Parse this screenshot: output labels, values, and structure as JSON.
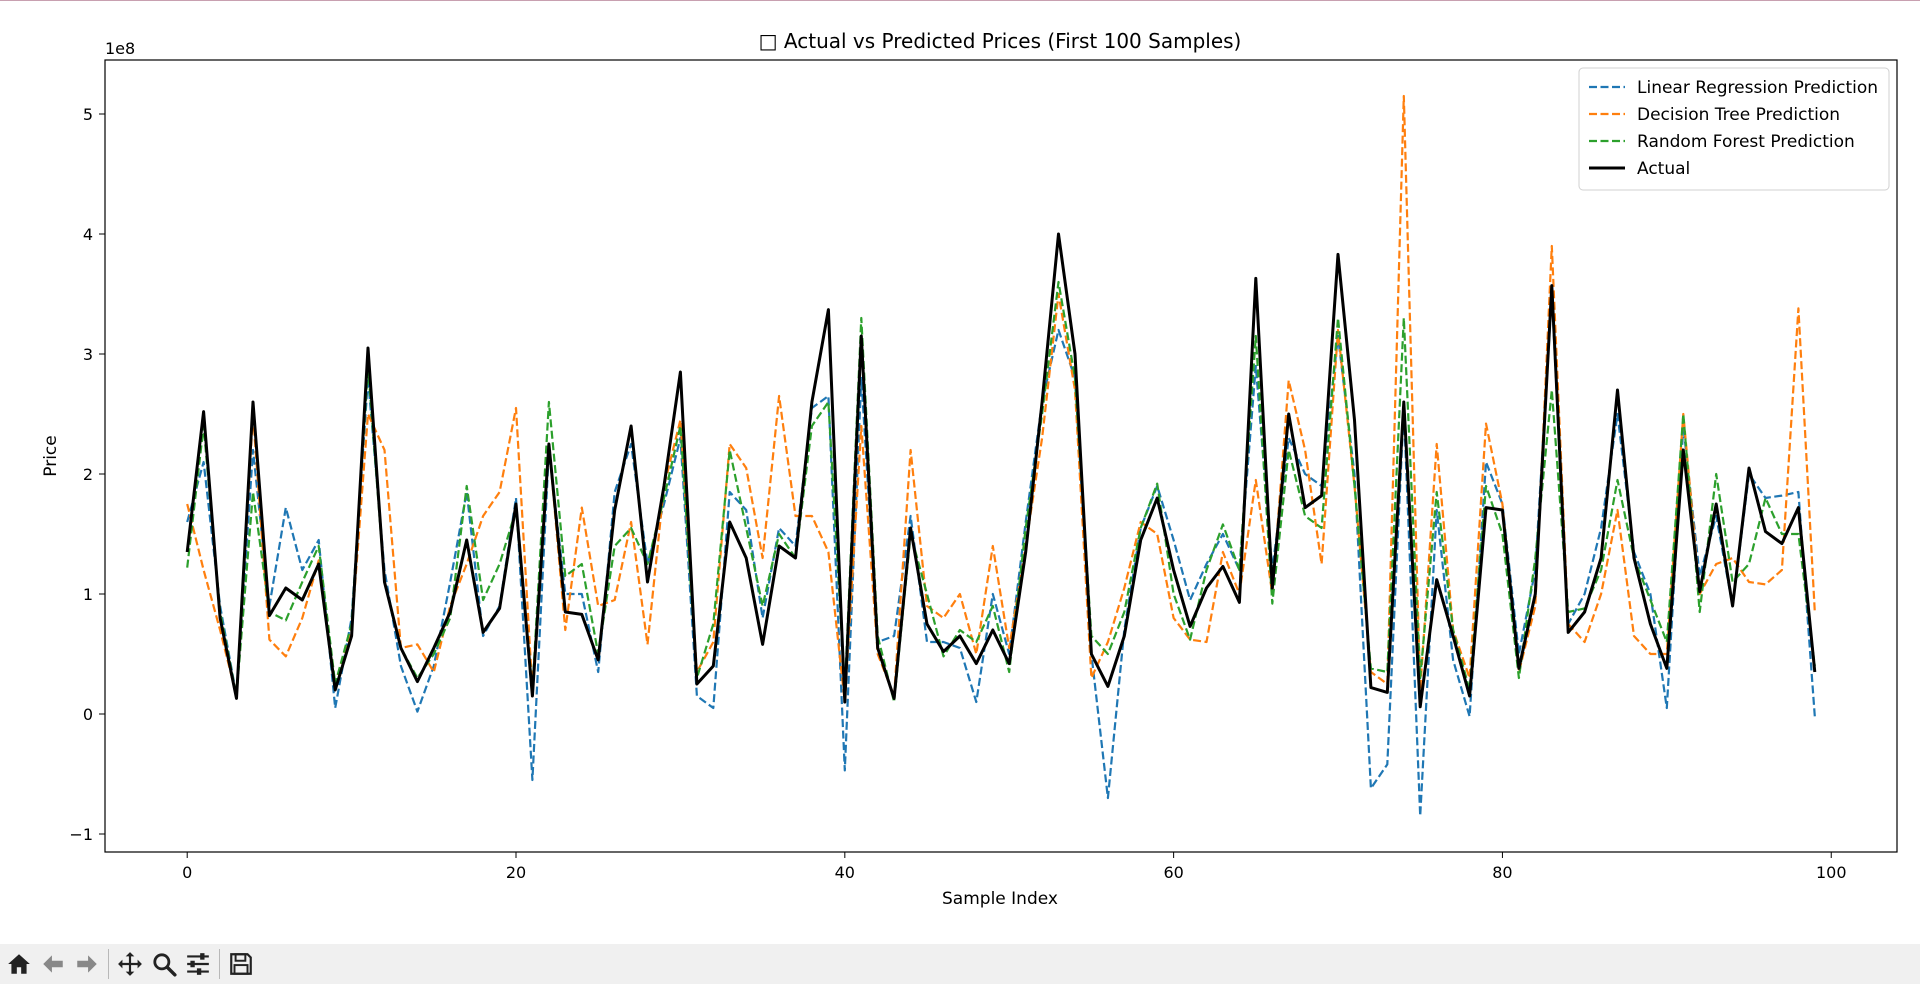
{
  "window": {
    "toolbar": {
      "buttons": [
        {
          "icon": "home-icon"
        },
        {
          "icon": "back-arrow-icon"
        },
        {
          "icon": "forward-arrow-icon"
        },
        {
          "icon": "pan-move-icon"
        },
        {
          "icon": "zoom-magnifier-icon"
        },
        {
          "icon": "configure-subplots-icon"
        },
        {
          "icon": "save-floppy-icon"
        }
      ]
    }
  },
  "chart_data": {
    "type": "line",
    "title": "□ Actual vs Predicted Prices (First 100 Samples)",
    "xlabel": "Sample Index",
    "ylabel": "Price",
    "offset_text": "1e8",
    "xlim": [
      -5,
      104
    ],
    "ylim": [
      -1.15,
      5.45
    ],
    "xticks": [
      0,
      20,
      40,
      60,
      80,
      100
    ],
    "yticks": [
      -1,
      0,
      1,
      2,
      3,
      4,
      5
    ],
    "grid": false,
    "legend_position": "upper right",
    "x": [
      0,
      1,
      2,
      3,
      4,
      5,
      6,
      7,
      8,
      9,
      10,
      11,
      12,
      13,
      14,
      15,
      16,
      17,
      18,
      19,
      20,
      21,
      22,
      23,
      24,
      25,
      26,
      27,
      28,
      29,
      30,
      31,
      32,
      33,
      34,
      35,
      36,
      37,
      38,
      39,
      40,
      41,
      42,
      43,
      44,
      45,
      46,
      47,
      48,
      49,
      50,
      51,
      52,
      53,
      54,
      55,
      56,
      57,
      58,
      59,
      60,
      61,
      62,
      63,
      64,
      65,
      66,
      67,
      68,
      69,
      70,
      71,
      72,
      73,
      74,
      75,
      76,
      77,
      78,
      79,
      80,
      81,
      82,
      83,
      84,
      85,
      86,
      87,
      88,
      89,
      90,
      91,
      92,
      93,
      94,
      95,
      96,
      97,
      98,
      99
    ],
    "series": [
      {
        "name": "Linear Regression Prediction",
        "color": "#1f77b4",
        "style": "dashed",
        "values": [
          1.6,
          2.1,
          0.9,
          0.15,
          2.2,
          0.9,
          1.72,
          1.2,
          1.45,
          0.05,
          0.8,
          2.8,
          1.2,
          0.4,
          0.02,
          0.4,
          1.1,
          1.85,
          0.65,
          0.9,
          1.8,
          -0.55,
          2.2,
          1.0,
          1.0,
          0.35,
          1.85,
          2.25,
          1.25,
          1.75,
          2.3,
          0.15,
          0.05,
          1.85,
          1.7,
          0.8,
          1.55,
          1.4,
          2.55,
          2.65,
          -0.47,
          2.8,
          0.6,
          0.65,
          1.65,
          0.6,
          0.6,
          0.55,
          0.1,
          1.0,
          0.5,
          1.6,
          2.6,
          3.2,
          2.8,
          0.5,
          -0.7,
          0.7,
          1.55,
          1.9,
          1.45,
          0.95,
          1.25,
          1.5,
          1.2,
          2.9,
          1.2,
          2.3,
          2.0,
          1.9,
          3.15,
          2.0,
          -0.62,
          -0.42,
          2.55,
          -0.85,
          1.7,
          0.45,
          -0.02,
          2.1,
          1.75,
          0.5,
          1.2,
          3.5,
          0.75,
          1.0,
          1.55,
          2.5,
          1.35,
          1.0,
          0.05,
          2.4,
          1.15,
          1.65,
          0.9,
          2.0,
          1.8,
          1.82,
          1.85,
          -0.02
        ]
      },
      {
        "name": "Decision Tree Prediction",
        "color": "#ff7f0e",
        "style": "dashed",
        "values": [
          1.75,
          1.2,
          0.7,
          0.15,
          2.5,
          0.62,
          0.48,
          0.8,
          1.28,
          0.25,
          0.7,
          2.5,
          2.2,
          0.55,
          0.58,
          0.35,
          0.9,
          1.25,
          1.65,
          1.85,
          2.55,
          0.2,
          2.25,
          0.7,
          1.72,
          0.9,
          0.95,
          1.6,
          0.58,
          1.9,
          2.45,
          0.35,
          0.6,
          2.25,
          2.05,
          1.3,
          2.65,
          1.65,
          1.65,
          1.35,
          0.1,
          2.4,
          0.5,
          0.15,
          2.2,
          0.9,
          0.8,
          1.0,
          0.5,
          1.4,
          0.55,
          1.4,
          2.3,
          3.5,
          2.7,
          0.3,
          0.6,
          1.05,
          1.6,
          1.5,
          0.8,
          0.62,
          0.6,
          1.35,
          1.0,
          1.95,
          1.0,
          2.78,
          2.2,
          1.25,
          3.2,
          1.9,
          0.35,
          0.25,
          5.15,
          0.2,
          2.25,
          0.7,
          0.3,
          2.42,
          1.75,
          0.35,
          0.9,
          3.9,
          0.75,
          0.6,
          1.0,
          1.7,
          0.65,
          0.5,
          0.5,
          2.5,
          1.0,
          1.25,
          1.3,
          1.1,
          1.08,
          1.2,
          3.38,
          0.85
        ]
      },
      {
        "name": "Random Forest Prediction",
        "color": "#2ca02c",
        "style": "dashed",
        "values": [
          1.22,
          2.4,
          0.85,
          0.15,
          1.85,
          0.85,
          0.78,
          1.1,
          1.4,
          0.25,
          0.75,
          2.9,
          1.1,
          0.55,
          0.3,
          0.5,
          0.8,
          1.9,
          0.95,
          1.25,
          1.7,
          0.2,
          2.6,
          1.15,
          1.25,
          0.5,
          1.4,
          1.55,
          1.25,
          1.8,
          2.4,
          0.3,
          0.75,
          2.2,
          1.55,
          0.9,
          1.5,
          1.3,
          2.4,
          2.6,
          0.2,
          3.3,
          0.65,
          0.1,
          1.5,
          1.0,
          0.48,
          0.7,
          0.6,
          0.9,
          0.35,
          1.55,
          2.5,
          3.6,
          2.8,
          0.65,
          0.5,
          0.85,
          1.55,
          1.92,
          1.0,
          0.62,
          1.2,
          1.58,
          1.2,
          3.15,
          0.92,
          2.2,
          1.65,
          1.55,
          3.3,
          1.9,
          0.38,
          0.35,
          3.3,
          0.3,
          1.85,
          0.7,
          0.2,
          1.9,
          1.5,
          0.3,
          1.3,
          2.7,
          0.85,
          0.88,
          1.2,
          1.95,
          1.3,
          0.95,
          0.6,
          2.5,
          0.85,
          2.0,
          1.1,
          1.25,
          1.8,
          1.5,
          1.5,
          0.4
        ]
      },
      {
        "name": "Actual",
        "color": "#000000",
        "style": "solid",
        "values": [
          1.35,
          2.52,
          0.8,
          0.13,
          2.6,
          0.82,
          1.05,
          0.95,
          1.25,
          0.2,
          0.65,
          3.05,
          1.1,
          0.55,
          0.27,
          0.55,
          0.85,
          1.45,
          0.68,
          0.88,
          1.75,
          0.15,
          2.25,
          0.85,
          0.83,
          0.45,
          1.7,
          2.4,
          1.1,
          1.9,
          2.85,
          0.25,
          0.4,
          1.6,
          1.3,
          0.58,
          1.4,
          1.3,
          2.6,
          3.37,
          0.1,
          3.15,
          0.55,
          0.13,
          1.55,
          0.75,
          0.52,
          0.65,
          0.42,
          0.7,
          0.42,
          1.35,
          2.6,
          4.0,
          3.0,
          0.5,
          0.23,
          0.65,
          1.45,
          1.8,
          1.2,
          0.73,
          1.05,
          1.23,
          0.93,
          3.63,
          1.05,
          2.5,
          1.72,
          1.82,
          3.83,
          2.45,
          0.22,
          0.18,
          2.6,
          0.06,
          1.12,
          0.65,
          0.15,
          1.72,
          1.7,
          0.38,
          1.0,
          3.57,
          0.68,
          0.85,
          1.3,
          2.7,
          1.3,
          0.75,
          0.38,
          2.2,
          1.02,
          1.75,
          0.9,
          2.05,
          1.52,
          1.42,
          1.72,
          0.35
        ]
      }
    ]
  }
}
